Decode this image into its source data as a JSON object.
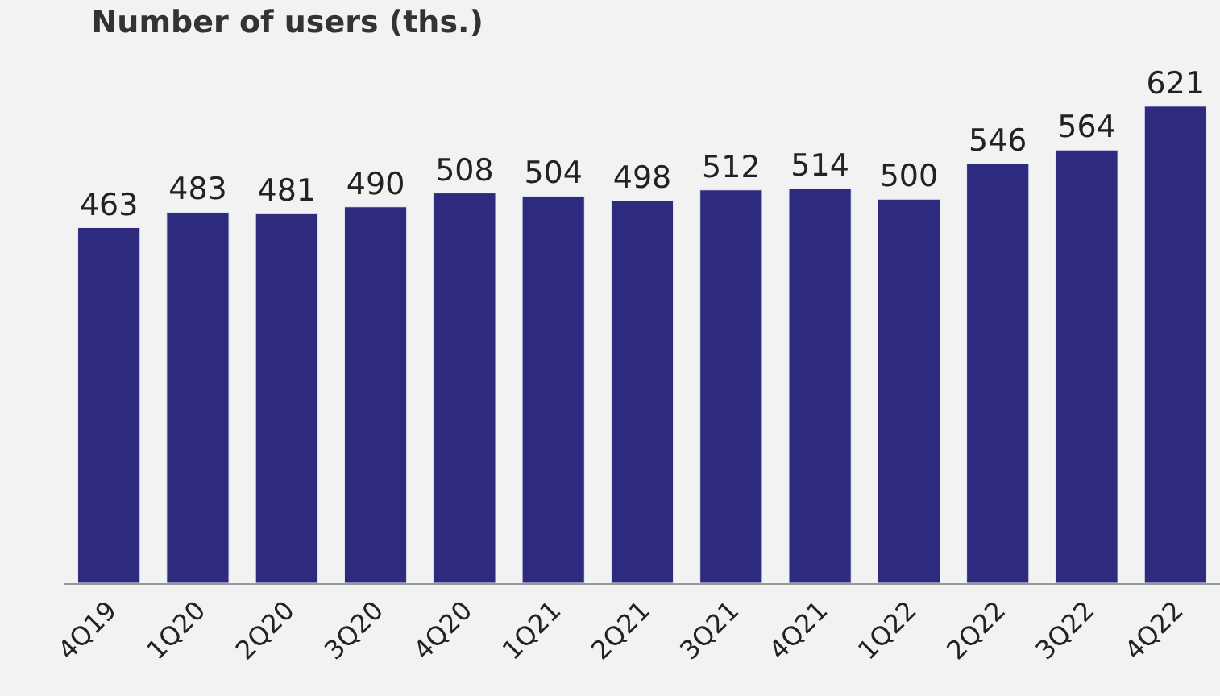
{
  "chart_data": {
    "type": "bar",
    "title": "Number of users (ths.)",
    "categories": [
      "4Q19",
      "1Q20",
      "2Q20",
      "3Q20",
      "4Q20",
      "1Q21",
      "2Q21",
      "3Q21",
      "4Q21",
      "1Q22",
      "2Q22",
      "3Q22",
      "4Q22"
    ],
    "values": [
      463,
      483,
      481,
      490,
      508,
      504,
      498,
      512,
      514,
      500,
      546,
      564,
      621
    ],
    "color": "#2e2a7e",
    "data_labels": true
  }
}
